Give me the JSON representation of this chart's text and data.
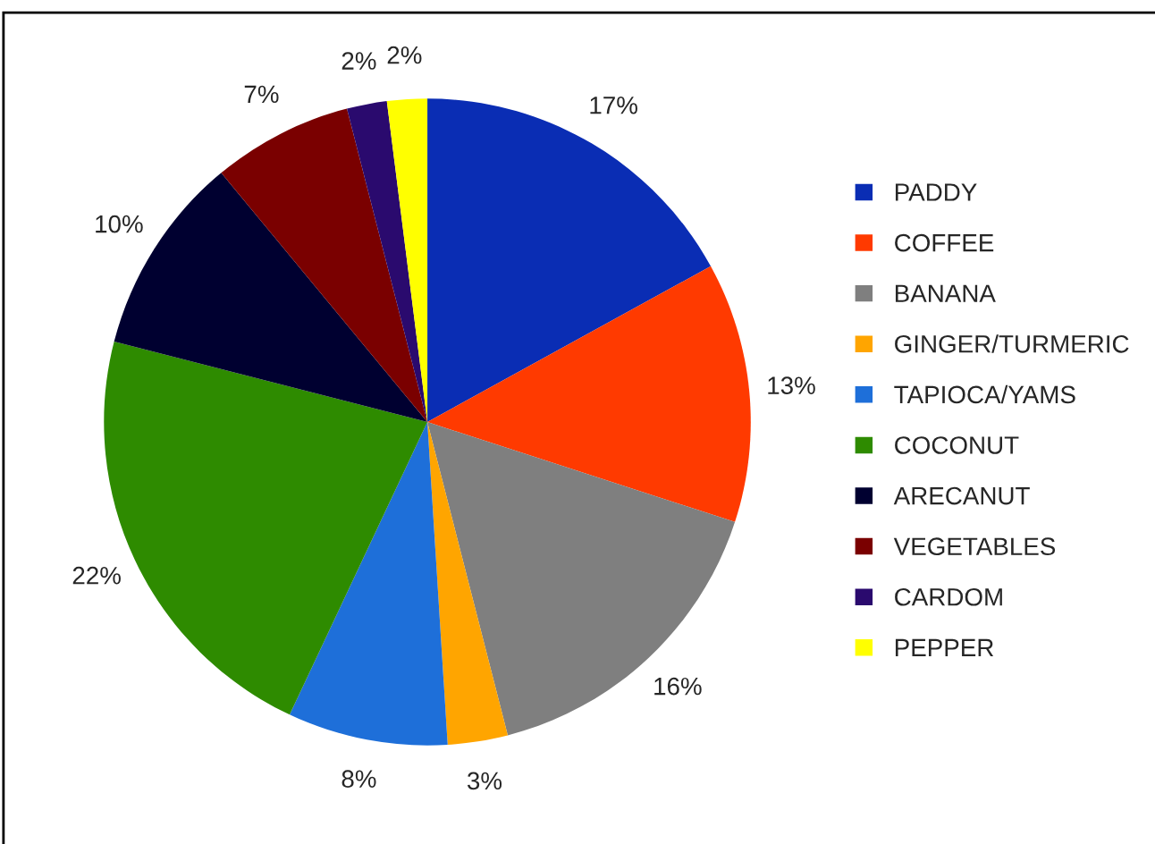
{
  "chart_data": {
    "type": "pie",
    "categories": [
      "PADDY",
      "COFFEE",
      "BANANA",
      "GINGER/TURMERIC",
      "TAPIOCA/YAMS",
      "COCONUT",
      "ARECANUT",
      "VEGETABLES",
      "CARDOM",
      "PEPPER"
    ],
    "values": [
      17,
      13,
      16,
      3,
      8,
      22,
      10,
      7,
      2,
      2
    ],
    "colors": [
      "#0a2db4",
      "#ff3a00",
      "#7f7f7f",
      "#ffa500",
      "#1e6fd9",
      "#2e8b00",
      "#000030",
      "#7a0000",
      "#2a0a6e",
      "#ffff00"
    ],
    "value_labels": [
      "17%",
      "13%",
      "16%",
      "3%",
      "8%",
      "22%",
      "10%",
      "7%",
      "2%",
      "2%"
    ],
    "legend": "right"
  }
}
